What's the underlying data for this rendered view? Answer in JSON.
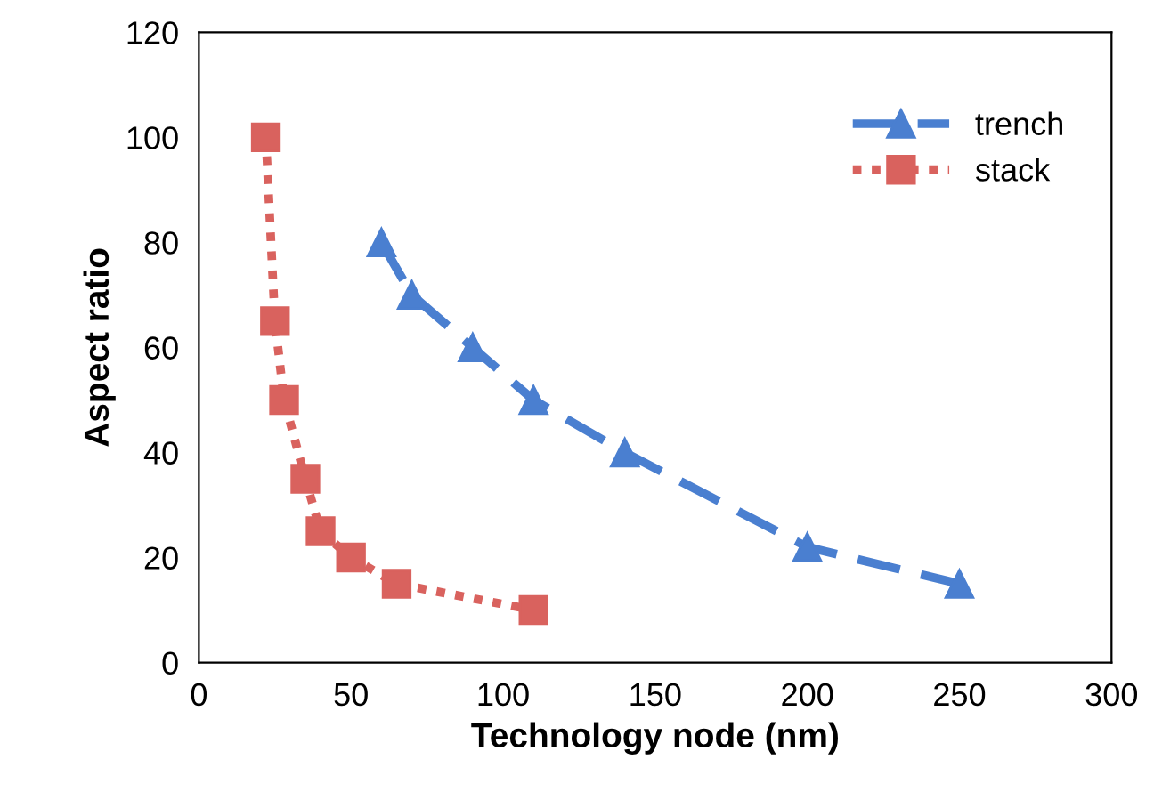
{
  "chart_data": {
    "type": "line",
    "xlabel": "Technology node (nm)",
    "ylabel": "Aspect ratio",
    "xlim": [
      0,
      300
    ],
    "xticks": [
      0,
      50,
      100,
      150,
      200,
      250,
      300
    ],
    "ylim": [
      0,
      120
    ],
    "yticks": [
      0,
      20,
      40,
      60,
      80,
      100,
      120
    ],
    "grid": false,
    "legend": "top right",
    "series": [
      {
        "name": "trench",
        "color": "#4a7fd0",
        "marker": "triangle",
        "line_style": "dashed",
        "x": [
          60,
          70,
          90,
          110,
          140,
          200,
          250
        ],
        "values": [
          80,
          70,
          60,
          50,
          40,
          22,
          15
        ]
      },
      {
        "name": "stack",
        "color": "#d9625e",
        "marker": "square",
        "line_style": "dotted",
        "x": [
          22,
          25,
          28,
          35,
          40,
          50,
          65,
          110
        ],
        "values": [
          100,
          65,
          50,
          35,
          25,
          20,
          15,
          10
        ]
      }
    ]
  }
}
